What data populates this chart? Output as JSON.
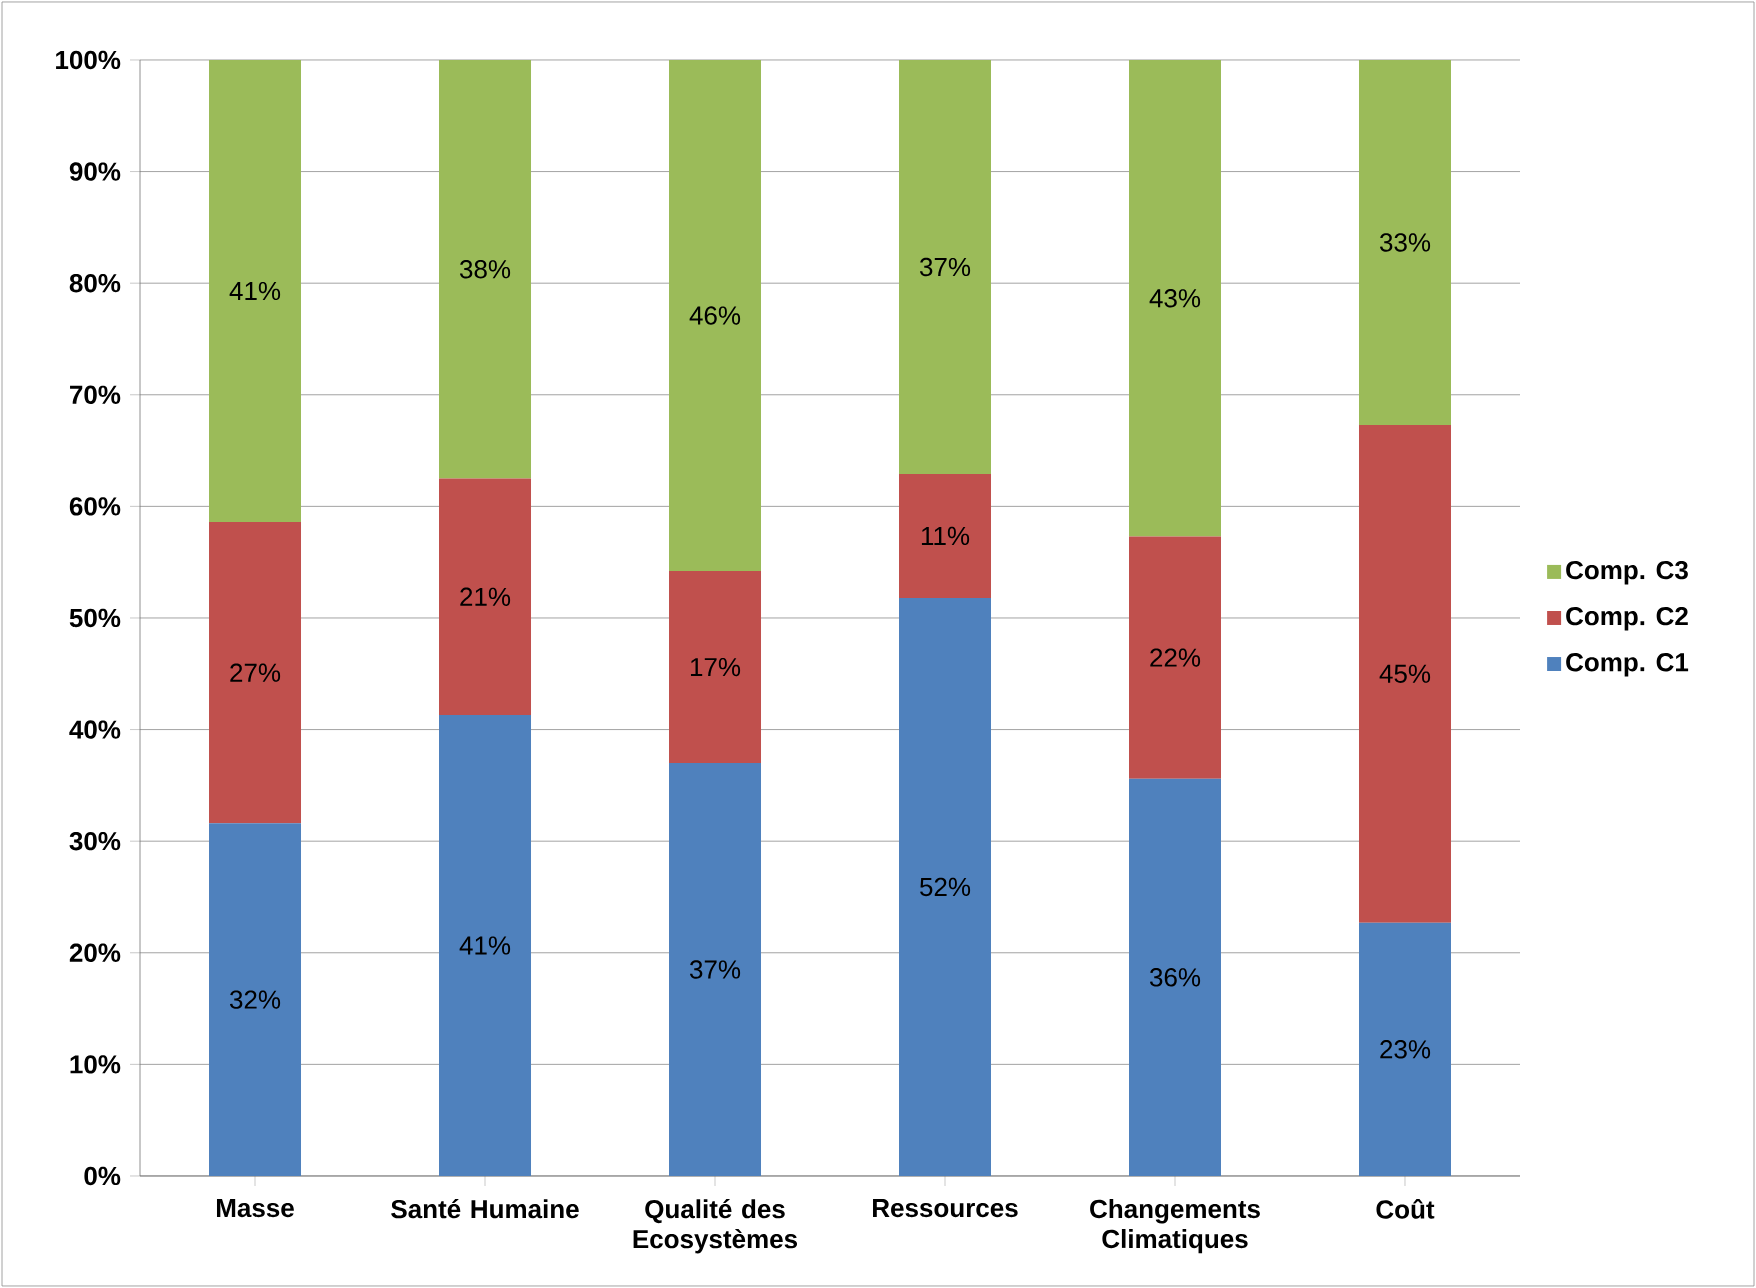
{
  "chart_data": {
    "type": "bar",
    "stacked": true,
    "categories": [
      "Masse",
      "Santé Humaine",
      "Qualité des Ecosystèmes",
      "Ressources",
      "Changements Climatiques",
      "Coût"
    ],
    "series": [
      {
        "name": "Comp. C1",
        "color": "#4f81bd",
        "values": [
          31.6,
          41.3,
          37.0,
          51.8,
          35.6,
          22.7
        ],
        "value_labels": [
          "32%",
          "41%",
          "37%",
          "52%",
          "36%",
          "23%"
        ]
      },
      {
        "name": "Comp. C2",
        "color": "#c0504d",
        "values": [
          27.0,
          21.2,
          17.2,
          11.1,
          21.7,
          44.6
        ],
        "value_labels": [
          "27%",
          "21%",
          "17%",
          "11%",
          "22%",
          "45%"
        ]
      },
      {
        "name": "Comp. C3",
        "color": "#9bbb59",
        "values": [
          41.4,
          37.5,
          45.8,
          37.1,
          42.7,
          32.7
        ],
        "value_labels": [
          "41%",
          "38%",
          "46%",
          "37%",
          "43%",
          "33%"
        ]
      }
    ],
    "ylim": [
      0,
      100
    ],
    "yticks": [
      {
        "value": 0,
        "label": "0%"
      },
      {
        "value": 10,
        "label": "10%"
      },
      {
        "value": 20,
        "label": "20%"
      },
      {
        "value": 30,
        "label": "30%"
      },
      {
        "value": 40,
        "label": "40%"
      },
      {
        "value": 50,
        "label": "50%"
      },
      {
        "value": 60,
        "label": "60%"
      },
      {
        "value": 70,
        "label": "70%"
      },
      {
        "value": 80,
        "label": "80%"
      },
      {
        "value": 90,
        "label": "90%"
      },
      {
        "value": 100,
        "label": "100%"
      }
    ],
    "grid": "y",
    "legend": "right"
  }
}
